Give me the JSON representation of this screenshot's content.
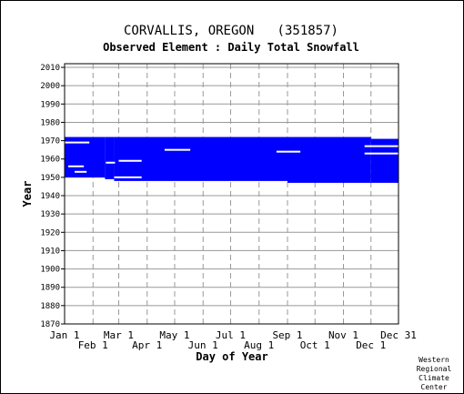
{
  "chart_data": {
    "type": "heatmap",
    "title": "CORVALLIS, OREGON   (351857)",
    "subtitle": "Observed Element : Daily Total Snowfall",
    "xlabel": "Day of Year",
    "ylabel": "Year",
    "credit": [
      "Western",
      "Regional",
      "Climate",
      "Center"
    ],
    "x_ticks_top": [
      "Jan 1",
      "Mar 1",
      "May 1",
      "Jul 1",
      "Sep 1",
      "Nov 1",
      "Dec 31"
    ],
    "x_ticks_bottom": [
      "Feb 1",
      "Apr 1",
      "Jun 1",
      "Aug 1",
      "Oct 1",
      "Dec 1"
    ],
    "x_tick_days": [
      1,
      32,
      60,
      91,
      121,
      152,
      182,
      213,
      244,
      274,
      305,
      335,
      365
    ],
    "xlim": [
      1,
      365
    ],
    "ylim": [
      1870,
      2012
    ],
    "y_ticks": [
      1870,
      1880,
      1890,
      1900,
      1910,
      1920,
      1930,
      1940,
      1950,
      1960,
      1970,
      1980,
      1990,
      2000,
      2010
    ],
    "grid": true,
    "fill_color": "#0000ff",
    "coverage": {
      "description": "Days with observations",
      "segments": [
        {
          "day_start": 1,
          "day_end": 45,
          "year_start": 1950,
          "year_end": 1972
        },
        {
          "day_start": 45,
          "day_end": 55,
          "year_start": 1949,
          "year_end": 1972
        },
        {
          "day_start": 55,
          "day_end": 60,
          "year_start": 1948,
          "year_end": 1972
        },
        {
          "day_start": 60,
          "day_end": 244,
          "year_start": 1948,
          "year_end": 1972
        },
        {
          "day_start": 244,
          "day_end": 305,
          "year_start": 1947,
          "year_end": 1972
        },
        {
          "day_start": 305,
          "day_end": 335,
          "year_start": 1947,
          "year_end": 1972
        },
        {
          "day_start": 335,
          "day_end": 365,
          "year_start": 1947,
          "year_end": 1971
        }
      ],
      "gaps": [
        {
          "day_start": 1,
          "day_end": 28,
          "year": 1969
        },
        {
          "day_start": 5,
          "day_end": 22,
          "year": 1956
        },
        {
          "day_start": 12,
          "day_end": 25,
          "year": 1953
        },
        {
          "day_start": 46,
          "day_end": 56,
          "year": 1958
        },
        {
          "day_start": 60,
          "day_end": 85,
          "year": 1959
        },
        {
          "day_start": 55,
          "day_end": 85,
          "year": 1950
        },
        {
          "day_start": 110,
          "day_end": 138,
          "year": 1965
        },
        {
          "day_start": 232,
          "day_end": 258,
          "year": 1964
        },
        {
          "day_start": 328,
          "day_end": 365,
          "year": 1963
        },
        {
          "day_start": 328,
          "day_end": 365,
          "year": 1967
        }
      ]
    }
  }
}
